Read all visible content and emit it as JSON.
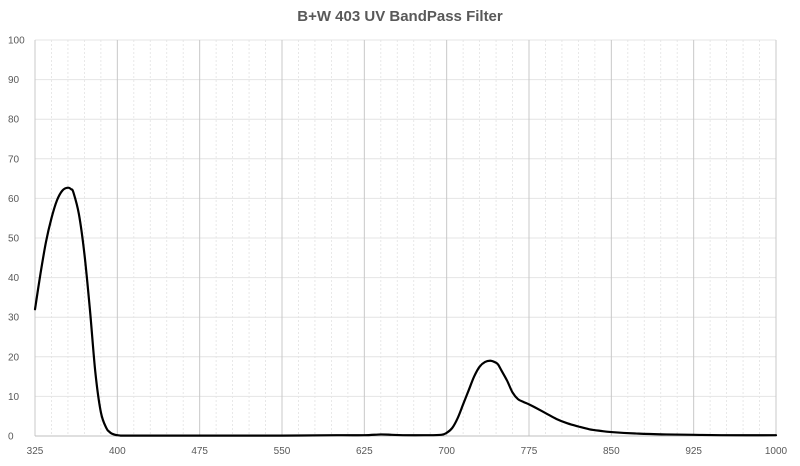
{
  "chart_data": {
    "type": "line",
    "title": "B+W 403 UV BandPass Filter",
    "xlabel": "",
    "ylabel": "",
    "xlim": [
      325,
      1000
    ],
    "ylim": [
      0,
      100
    ],
    "x_ticks": [
      325,
      400,
      475,
      550,
      625,
      700,
      775,
      850,
      925,
      1000
    ],
    "y_ticks": [
      0,
      10,
      20,
      30,
      40,
      50,
      60,
      70,
      80,
      90,
      100
    ],
    "grid": {
      "major_vertical": true,
      "minor_vertical": true,
      "horizontal": true
    },
    "series": [
      {
        "name": "",
        "color": "#000000",
        "x": [
          325,
          330,
          335,
          340,
          345,
          350,
          355,
          358,
          360,
          365,
          370,
          375,
          380,
          385,
          390,
          393,
          395,
          398,
          400,
          403,
          405,
          410,
          450,
          500,
          550,
          600,
          625,
          640,
          650,
          660,
          680,
          695,
          700,
          705,
          710,
          715,
          720,
          725,
          730,
          735,
          740,
          745,
          747,
          750,
          755,
          760,
          765,
          770,
          775,
          780,
          790,
          800,
          810,
          820,
          830,
          840,
          850,
          875,
          900,
          925,
          950,
          1000
        ],
        "y": [
          32,
          41,
          49,
          55,
          59.5,
          62,
          62.7,
          62.3,
          61.5,
          56,
          46,
          32,
          16,
          6,
          2,
          1,
          0.6,
          0.3,
          0.2,
          0.1,
          0.1,
          0.1,
          0.1,
          0.1,
          0.1,
          0.2,
          0.2,
          0.4,
          0.3,
          0.2,
          0.2,
          0.3,
          0.8,
          2,
          4.5,
          8,
          11.5,
          15,
          17.5,
          18.7,
          19,
          18.5,
          18,
          16.5,
          14,
          11,
          9.3,
          8.6,
          8,
          7.3,
          5.8,
          4.3,
          3.2,
          2.4,
          1.7,
          1.3,
          1.0,
          0.6,
          0.4,
          0.3,
          0.2,
          0.2
        ]
      }
    ]
  }
}
